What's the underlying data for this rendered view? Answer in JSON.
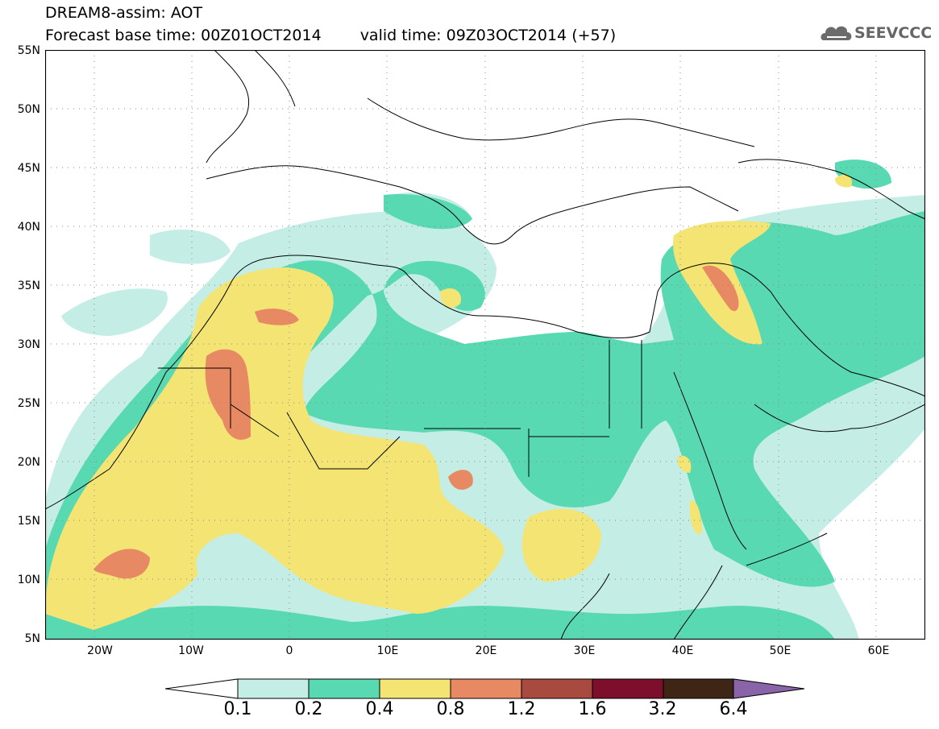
{
  "header": {
    "model_title": "DREAM8-assim: AOT",
    "base_time": "Forecast base time: 00Z01OCT2014",
    "valid_time": "valid time: 09Z03OCT2014 (+57)"
  },
  "logo": {
    "text": "SEEVCCC",
    "icon": "cloud-icon"
  },
  "map": {
    "lat_ticks": [
      "55N",
      "50N",
      "45N",
      "40N",
      "35N",
      "30N",
      "25N",
      "20N",
      "15N",
      "10N",
      "5N"
    ],
    "lon_ticks": [
      "20W",
      "10W",
      "0",
      "10E",
      "20E",
      "30E",
      "40E",
      "50E",
      "60E"
    ],
    "lon_range": [
      -25,
      65
    ],
    "lat_range": [
      5,
      55
    ],
    "grid": "dotted"
  },
  "colorbar": {
    "labels": [
      "0.1",
      "0.2",
      "0.4",
      "0.8",
      "1.2",
      "1.6",
      "3.2",
      "6.4"
    ],
    "colors": [
      "#ffffff",
      "#c4eee5",
      "#59d9b1",
      "#f3e473",
      "#e78a63",
      "#a84a3f",
      "#7d0e2c",
      "#3e2516",
      "#8a64a8"
    ]
  }
}
